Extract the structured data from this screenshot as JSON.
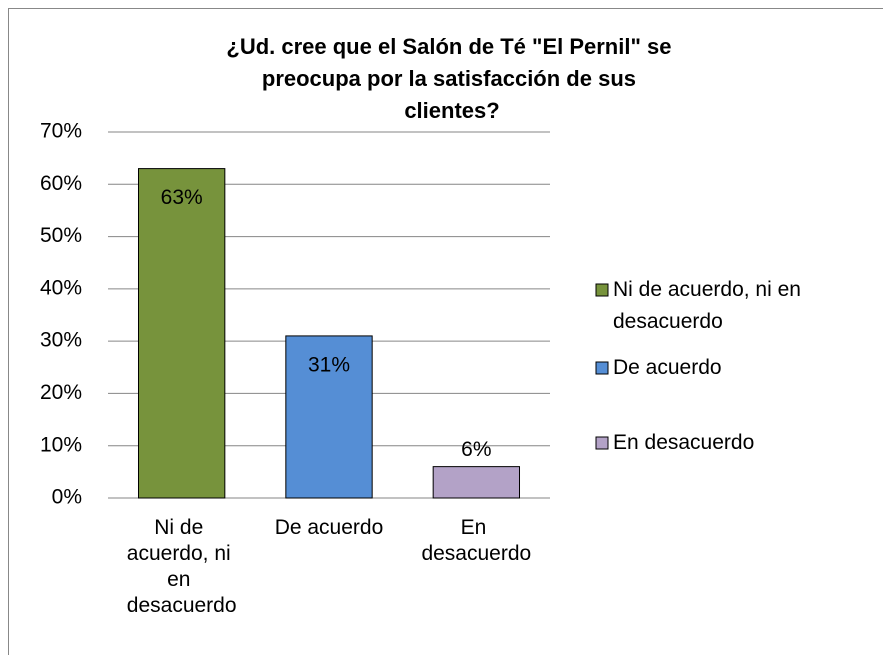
{
  "chart_data": {
    "type": "bar",
    "title": "¿Ud. cree que el Salón de Té \"El Pernil\" se preocupa por la satisfacción de sus clientes?",
    "categories": [
      "Ni de acuerdo, ni en desacuerdo",
      "De acuerdo",
      "En desacuerdo"
    ],
    "values": [
      63,
      31,
      6
    ],
    "value_labels": [
      "63%",
      "31%",
      "6%"
    ],
    "colors": [
      "#77933c",
      "#558ed5",
      "#b3a2c7"
    ],
    "ylim": [
      0,
      70
    ],
    "yticks": [
      {
        "value": 0,
        "label": "0%"
      },
      {
        "value": 10,
        "label": "10%"
      },
      {
        "value": 20,
        "label": "20%"
      },
      {
        "value": 30,
        "label": "30%"
      },
      {
        "value": 40,
        "label": "40%"
      },
      {
        "value": 50,
        "label": "50%"
      },
      {
        "value": 60,
        "label": "60%"
      },
      {
        "value": 70,
        "label": "70%"
      }
    ],
    "grid": true,
    "legend": "right"
  }
}
